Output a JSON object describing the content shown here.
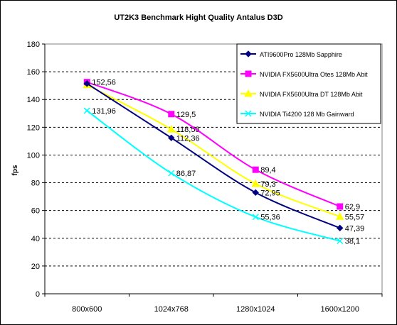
{
  "chart_data": {
    "type": "line",
    "title": "UT2K3 Benchmark Hight Quality Antalus D3D",
    "xlabel": "",
    "ylabel": "fps",
    "categories": [
      "800x600",
      "1024x768",
      "1280x1024",
      "1600x1200"
    ],
    "ylim": [
      0,
      180
    ],
    "ystep": 20,
    "grid": "horizontal-dashed",
    "legend_position": "top-right",
    "series": [
      {
        "name": "ATI9600Pro 128Mb Sapphire",
        "color": "#000080",
        "marker": "diamond",
        "values": [
          151.5,
          112.36,
          72.95,
          47.39
        ],
        "labels": [
          "",
          "112,36",
          "72,95",
          "47,39"
        ]
      },
      {
        "name": "NVIDIA FX5600Ultra Otes 128Mb Abit",
        "color": "#ff00ff",
        "marker": "square",
        "values": [
          152.56,
          129.5,
          89.4,
          62.9
        ],
        "labels": [
          "152,56",
          "129,5",
          "89,4",
          "62,9"
        ]
      },
      {
        "name": "NVIDIA FX5600Ultra DT 128Mb Abit",
        "color": "#ffff00",
        "marker": "triangle",
        "values": [
          150.5,
          118.58,
          79.3,
          55.57
        ],
        "labels": [
          "",
          "118,58",
          "79,3",
          "55,57"
        ]
      },
      {
        "name": "NVIDIA Ti4200 128 Mb Gainward",
        "color": "#00ffff",
        "marker": "x",
        "values": [
          131.96,
          86.87,
          55.36,
          38.1
        ],
        "labels": [
          "131,96",
          "86,87",
          "55,36",
          "38,1"
        ]
      }
    ]
  }
}
